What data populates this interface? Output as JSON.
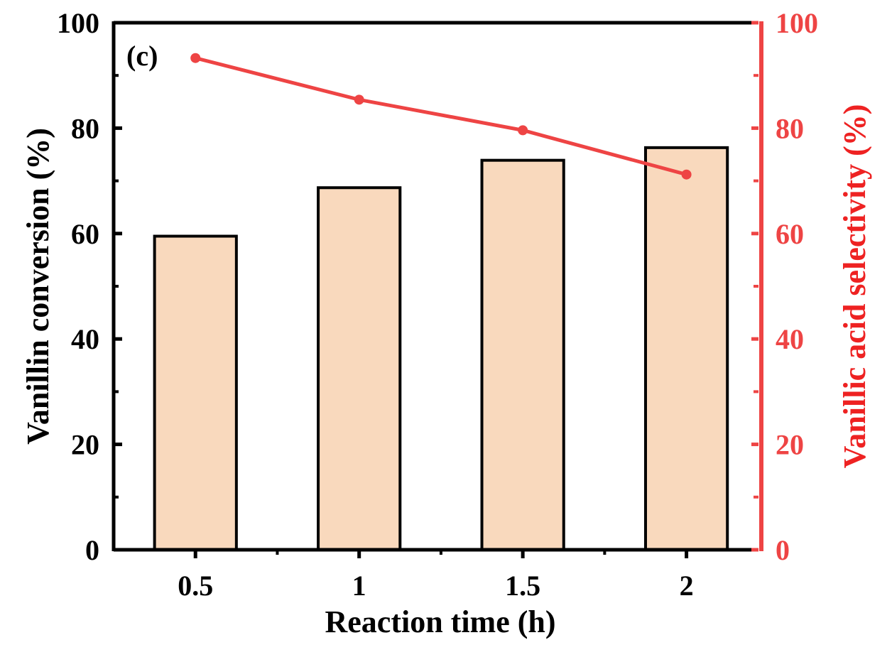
{
  "chart_data": {
    "type": "bar",
    "panel_label": "(c)",
    "xlabel": "Reaction time (h)",
    "ylabel": "Vanillin conversion (%)",
    "y2label": "Vanillic acid selectivity (%)",
    "x": [
      0.5,
      1,
      1.5,
      2
    ],
    "x_tick_labels": [
      "0.5",
      "1",
      "1.5",
      "2"
    ],
    "xlim": [
      0.25,
      2.22
    ],
    "ylim": [
      0,
      100
    ],
    "y2lim": [
      0,
      100
    ],
    "y_ticks": [
      0,
      20,
      40,
      60,
      80,
      100
    ],
    "y_tick_labels": [
      "0",
      "20",
      "40",
      "60",
      "80",
      "100"
    ],
    "y2_tick_labels": [
      "0",
      "20",
      "40",
      "60",
      "80",
      "100"
    ],
    "series": [
      {
        "name": "Vanillin conversion",
        "type": "bar",
        "axis": "left",
        "values": [
          59.5,
          68.7,
          73.9,
          76.3
        ],
        "color": "#F9D9BD"
      },
      {
        "name": "Vanillic acid selectivity",
        "type": "line",
        "axis": "right",
        "values": [
          93.3,
          85.4,
          79.6,
          71.2
        ],
        "color": "#EE4444"
      }
    ],
    "grid": false,
    "legend": "none"
  }
}
